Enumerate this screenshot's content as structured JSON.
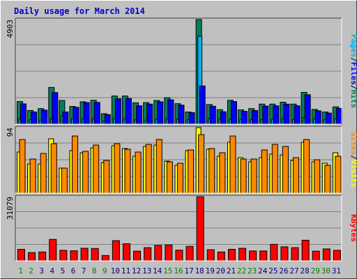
{
  "chart_data": {
    "type": "bar",
    "title": "Daily usage for March 2014",
    "colors": {
      "title": "#0000cc",
      "hits": "#00805a",
      "files": "#00b0f0",
      "pages": "#0000ff",
      "visits": "#ffff00",
      "sites": "#ff8800",
      "kbytes": "#ff0000",
      "weekend_label": "#008000",
      "weekday_label": "#000080"
    },
    "categories": [
      "1",
      "2",
      "3",
      "4",
      "5",
      "6",
      "7",
      "8",
      "9",
      "10",
      "11",
      "12",
      "13",
      "14",
      "15",
      "16",
      "17",
      "18",
      "19",
      "20",
      "21",
      "22",
      "23",
      "24",
      "25",
      "26",
      "27",
      "28",
      "29",
      "30",
      "31"
    ],
    "weekend_days": [
      "1",
      "2",
      "8",
      "9",
      "15",
      "16",
      "22",
      "23",
      "29",
      "30"
    ],
    "panels": [
      {
        "id": "traffic",
        "ymax_label": "4903",
        "ylim": [
          0,
          4903
        ],
        "legend": [
          {
            "text": "Pages",
            "color": "#00b0f0"
          },
          {
            "text": "/",
            "color": "#000000"
          },
          {
            "text": "Files",
            "color": "#0000ff"
          },
          {
            "text": "/",
            "color": "#000000"
          },
          {
            "text": "Hits",
            "color": "#00805a"
          }
        ],
        "series": [
          {
            "name": "Hits",
            "color": "#00805a",
            "values": [
              1060,
              640,
              730,
              1720,
              1110,
              830,
              1050,
              1120,
              490,
              1320,
              1320,
              1000,
              1010,
              1110,
              1240,
              960,
              570,
              4903,
              920,
              680,
              1120,
              670,
              730,
              940,
              940,
              1030,
              940,
              1490,
              690,
              570,
              810
            ]
          },
          {
            "name": "Files",
            "color": "#00b0f0",
            "values": [
              260,
              210,
              190,
              260,
              380,
              260,
              250,
              260,
              150,
              260,
              260,
              200,
              190,
              230,
              260,
              240,
              220,
              4120,
              270,
              250,
              230,
              220,
              220,
              210,
              220,
              260,
              220,
              300,
              250,
              210,
              260
            ]
          },
          {
            "name": "Pages",
            "color": "#0000ff",
            "values": [
              950,
              570,
              660,
              1480,
              570,
              790,
              1010,
              1020,
              450,
              1190,
              1200,
              860,
              940,
              1050,
              1140,
              890,
              540,
              1790,
              840,
              580,
              1060,
              600,
              640,
              850,
              860,
              940,
              860,
              1380,
              630,
              520,
              740
            ]
          }
        ]
      },
      {
        "id": "visitors",
        "ymax_label": "94",
        "ylim": [
          0,
          94
        ],
        "legend": [
          {
            "text": "Sites",
            "color": "#ff8800"
          },
          {
            "text": "/",
            "color": "#000000"
          },
          {
            "text": "Visits",
            "color": "#ffff00"
          }
        ],
        "series": [
          {
            "name": "Visits",
            "color": "#ffff00",
            "values": [
              59,
              42,
              42,
              78,
              36,
              61,
              58,
              65,
              44,
              68,
              64,
              53,
              67,
              69,
              46,
              40,
              61,
              94,
              63,
              53,
              73,
              51,
              45,
              51,
              56,
              55,
              47,
              73,
              45,
              43,
              58
            ]
          },
          {
            "name": "Sites",
            "color": "#ff8800",
            "values": [
              77,
              49,
              57,
              71,
              36,
              82,
              60,
              69,
              47,
              71,
              63,
              59,
              70,
              77,
              45,
              43,
              62,
              84,
              64,
              58,
              82,
              49,
              49,
              62,
              70,
              67,
              51,
              77,
              48,
              40,
              53
            ]
          }
        ]
      },
      {
        "id": "kbytes",
        "ymax_label": "31079",
        "ylim": [
          0,
          31079
        ],
        "legend": [
          {
            "text": "KBytes",
            "color": "#ff0000"
          }
        ],
        "series": [
          {
            "name": "KBytes",
            "color": "#ff0000",
            "values": [
              5600,
              4000,
              4300,
              10400,
              5100,
              4900,
              6100,
              6000,
              2600,
              9800,
              8300,
              4700,
              6400,
              7500,
              7700,
              5200,
              7000,
              31079,
              5400,
              4300,
              5600,
              6100,
              4800,
              4800,
              8000,
              6800,
              6400,
              10000,
              4700,
              5800,
              5100
            ]
          }
        ]
      }
    ]
  }
}
